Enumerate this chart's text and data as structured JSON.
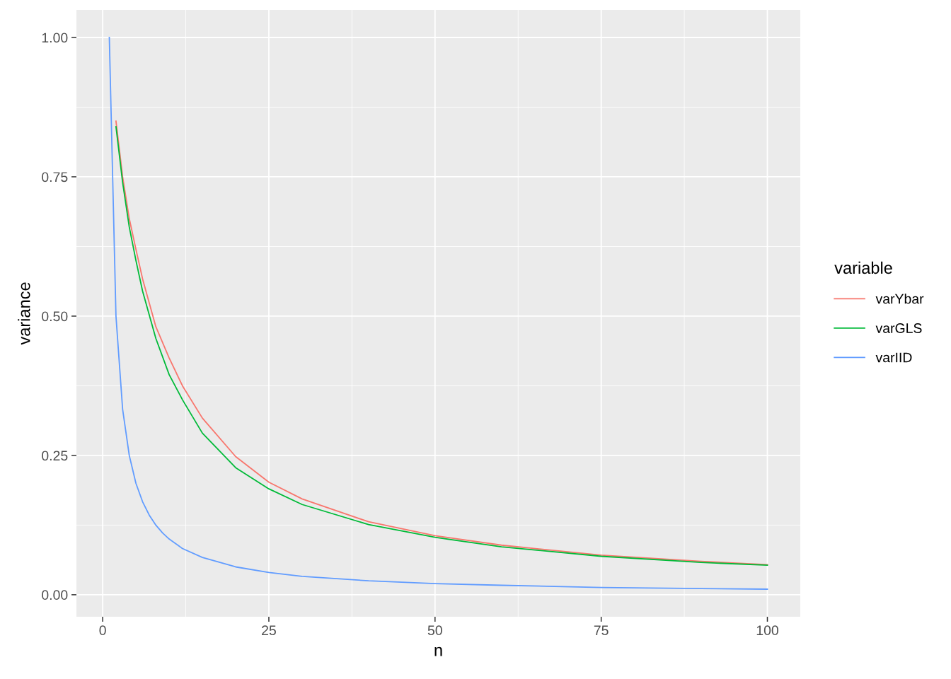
{
  "chart_data": {
    "type": "line",
    "xlabel": "n",
    "ylabel": "variance",
    "legend_title": "variable",
    "xlim": [
      -3.95,
      104.95
    ],
    "ylim": [
      -0.0395,
      1.0495
    ],
    "xticks": [
      0,
      25,
      50,
      75,
      100
    ],
    "yticks": [
      {
        "value": 0,
        "label": "0.00"
      },
      {
        "value": 0.25,
        "label": "0.25"
      },
      {
        "value": 0.5,
        "label": "0.50"
      },
      {
        "value": 0.75,
        "label": "0.75"
      },
      {
        "value": 1,
        "label": "1.00"
      }
    ],
    "grid": true,
    "legend": "right",
    "line_style": "solid",
    "series": [
      {
        "name": "varYbar",
        "color": "#f8766d",
        "x": [
          2,
          3,
          4,
          5,
          6,
          8,
          10,
          12,
          15,
          20,
          25,
          30,
          40,
          50,
          60,
          75,
          90,
          100
        ],
        "values": [
          0.85,
          0.75,
          0.675,
          0.62,
          0.567,
          0.481,
          0.425,
          0.375,
          0.317,
          0.248,
          0.202,
          0.172,
          0.131,
          0.106,
          0.089,
          0.071,
          0.06,
          0.054
        ]
      },
      {
        "name": "varGLS",
        "color": "#00ba38",
        "x": [
          2,
          3,
          4,
          5,
          6,
          8,
          10,
          12,
          15,
          20,
          25,
          30,
          40,
          50,
          60,
          75,
          90,
          100
        ],
        "values": [
          0.84,
          0.74,
          0.66,
          0.6,
          0.545,
          0.46,
          0.395,
          0.35,
          0.29,
          0.228,
          0.19,
          0.162,
          0.126,
          0.103,
          0.086,
          0.069,
          0.058,
          0.053
        ]
      },
      {
        "name": "varIID",
        "color": "#619cff",
        "x": [
          1,
          2,
          3,
          4,
          5,
          6,
          7,
          8,
          9,
          10,
          12,
          15,
          20,
          25,
          30,
          40,
          50,
          60,
          75,
          90,
          100
        ],
        "values": [
          1.0,
          0.5,
          0.333,
          0.25,
          0.2,
          0.167,
          0.143,
          0.125,
          0.111,
          0.1,
          0.083,
          0.067,
          0.05,
          0.04,
          0.033,
          0.025,
          0.02,
          0.017,
          0.013,
          0.011,
          0.01
        ]
      }
    ]
  }
}
